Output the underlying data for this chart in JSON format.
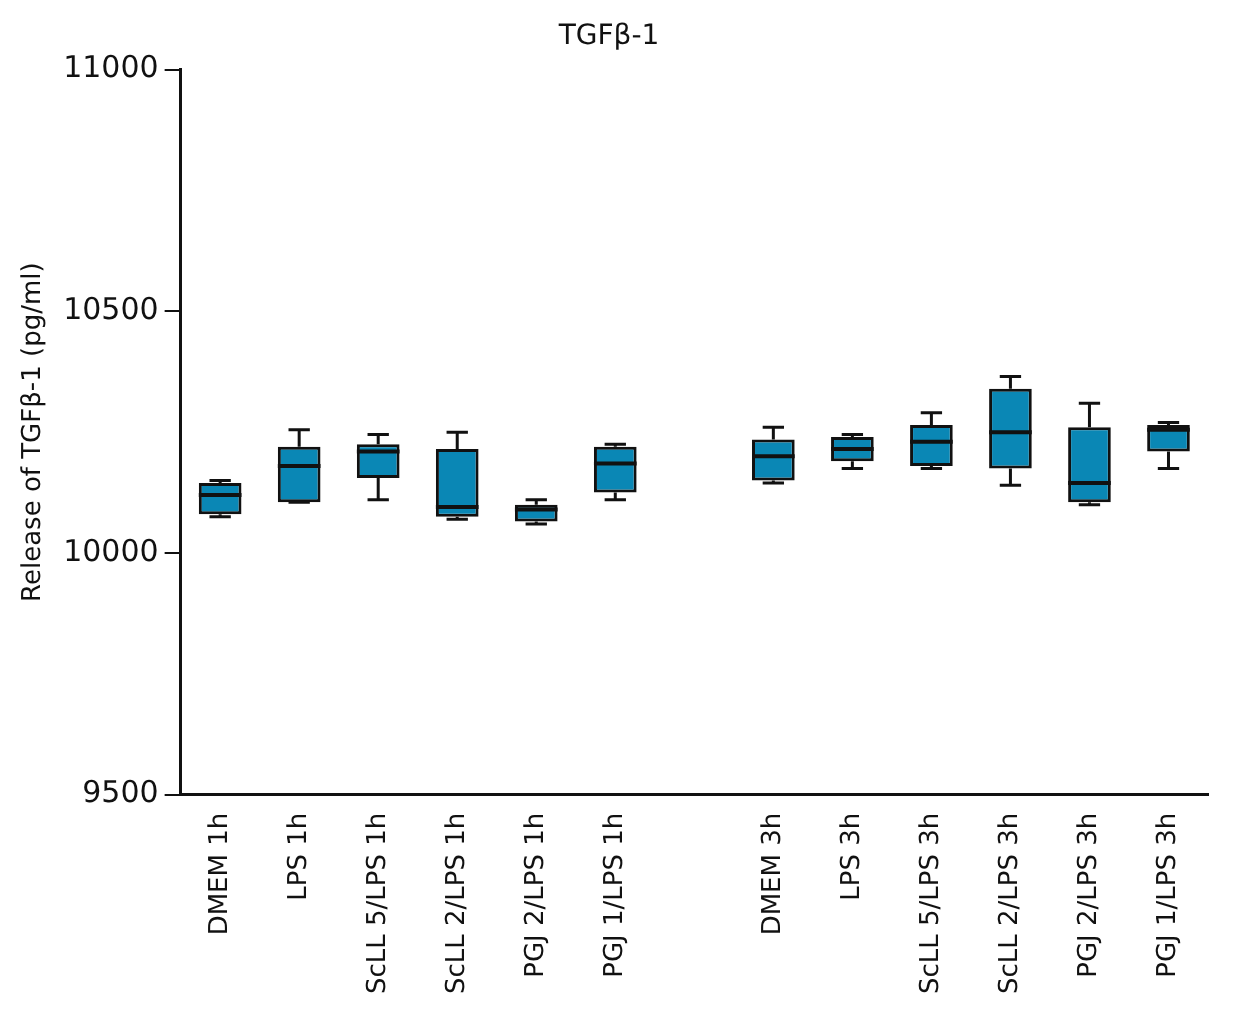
{
  "chart_data": {
    "type": "box",
    "title": "TGFβ-1",
    "ylabel": "Release of TGFβ-1 (pg/ml)",
    "categories": [
      "DMEM 1h",
      "LPS 1h",
      "ScLL 5/LPS 1h",
      "ScLL 2/LPS 1h",
      "PGJ 2/LPS 1h",
      "PGJ 1/LPS 1h",
      null,
      "DMEM 3h",
      "LPS 3h",
      "ScLL 5/LPS 3h",
      "ScLL 2/LPS 3h",
      "PGJ 2/LPS 3h",
      "PGJ 1/LPS 3h"
    ],
    "boxes": [
      {
        "low": 10075,
        "q1": 10080,
        "median": 10120,
        "q3": 10145,
        "high": 10150
      },
      {
        "low": 10105,
        "q1": 10105,
        "median": 10180,
        "q3": 10220,
        "high": 10255
      },
      {
        "low": 10110,
        "q1": 10155,
        "median": 10210,
        "q3": 10225,
        "high": 10245
      },
      {
        "low": 10070,
        "q1": 10075,
        "median": 10095,
        "q3": 10215,
        "high": 10250
      },
      {
        "low": 10060,
        "q1": 10065,
        "median": 10090,
        "q3": 10100,
        "high": 10110
      },
      {
        "low": 10110,
        "q1": 10125,
        "median": 10185,
        "q3": 10220,
        "high": 10225
      },
      null,
      {
        "low": 10145,
        "q1": 10150,
        "median": 10200,
        "q3": 10235,
        "high": 10260
      },
      {
        "low": 10175,
        "q1": 10190,
        "median": 10215,
        "q3": 10240,
        "high": 10245
      },
      {
        "low": 10175,
        "q1": 10180,
        "median": 10230,
        "q3": 10265,
        "high": 10290
      },
      {
        "low": 10140,
        "q1": 10175,
        "median": 10250,
        "q3": 10340,
        "high": 10365
      },
      {
        "low": 10100,
        "q1": 10105,
        "median": 10145,
        "q3": 10260,
        "high": 10310
      },
      {
        "low": 10175,
        "q1": 10210,
        "median": 10255,
        "q3": 10265,
        "high": 10270
      }
    ],
    "color": "#0a87b5",
    "ylim": [
      9500,
      11000
    ],
    "yticks": [
      9500,
      10000,
      10500,
      11000
    ],
    "grid": false
  }
}
